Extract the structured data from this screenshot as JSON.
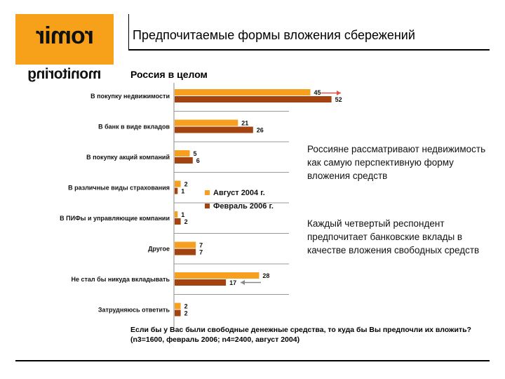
{
  "logo": {
    "top_text": "romir",
    "bottom_text": "monitoring"
  },
  "header": {
    "title": "Предпочитаемые формы вложения сбережений"
  },
  "subtitle": "Россия в целом",
  "colors": {
    "aug2004": "#f79f1f",
    "feb2006": "#a3430f",
    "arrow": "#d9574a",
    "arrow_gray": "#888888"
  },
  "chart_data": {
    "type": "bar",
    "orientation": "horizontal",
    "categories": [
      "В покупку недвижимости",
      "В банк в виде вкладов",
      "В покупку акций компаний",
      "В различные виды страхования",
      "В ПИФы и управляющие компании",
      "Другое",
      "Не стал бы никуда вкладывать",
      "Затрудняюсь ответить"
    ],
    "series": [
      {
        "name": "Август 2004 г.",
        "values": [
          45,
          21,
          5,
          2,
          1,
          7,
          28,
          2
        ]
      },
      {
        "name": "Февраль 2006 г.",
        "values": [
          52,
          26,
          6,
          1,
          2,
          7,
          17,
          2
        ]
      }
    ],
    "xlim": [
      0,
      60
    ],
    "legend_position": "center",
    "grid": false
  },
  "notes": [
    "Россияне рассматривают недвижимость как самую перспективную форму вложения средств",
    "Каждый четвертый респондент предпочитает банковские вклады в качестве вложения свободных средств"
  ],
  "footer": {
    "question": "Если бы у Вас были свободные денежные средства, то куда бы Вы предпочли их вложить?",
    "sample": "(n3=1600, февраль 2006; n4=2400, август 2004)"
  }
}
